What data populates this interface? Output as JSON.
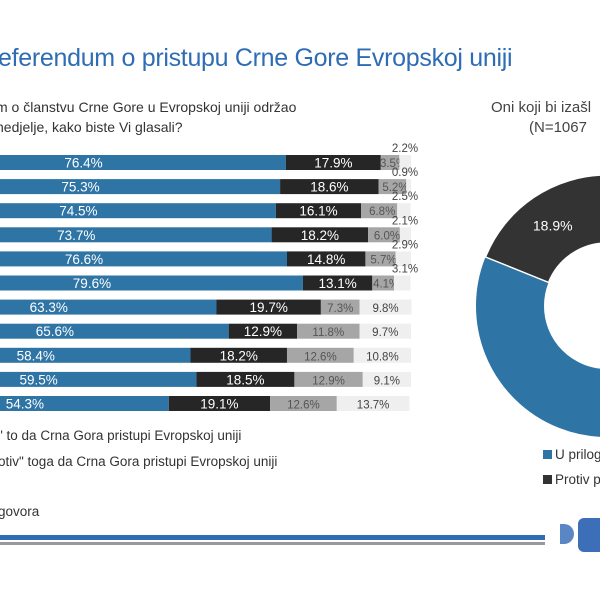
{
  "title": "eferendum o pristupu Crne Gore Evropskoj uniji",
  "question": [
    "m o članstvu Crne Gore u Evropskoj uniji održao",
    "nedjelje, kako biste Vi glasali?"
  ],
  "colors": {
    "for": "#2e74a5",
    "against": "#262626",
    "undecided": "#a6a6a6",
    "no_answer": "#efefef",
    "title": "#2e6db4"
  },
  "legend_left": [
    "\" to da Crna Gora pristupi Evropskoj uniji",
    "otiv\" toga da Crna Gora pristupi Evropskoj uniji",
    "govora"
  ],
  "chart_data": [
    {
      "type": "bar",
      "stacked": true,
      "orientation": "horizontal",
      "series": [
        {
          "values": [
            76.4,
            75.3,
            74.5,
            73.7,
            76.6,
            79.6,
            63.3,
            65.6,
            58.4,
            59.5,
            54.3
          ]
        },
        {
          "values": [
            17.9,
            18.6,
            16.1,
            18.2,
            14.8,
            13.1,
            19.7,
            12.9,
            18.2,
            18.5,
            19.1
          ]
        },
        {
          "values": [
            3.5,
            5.2,
            6.8,
            6.0,
            5.7,
            4.1,
            7.3,
            11.8,
            12.6,
            12.9,
            12.6
          ]
        },
        {
          "values": [
            2.2,
            0.9,
            2.5,
            2.1,
            2.9,
            3.1,
            9.8,
            9.7,
            10.8,
            9.1,
            13.7
          ]
        }
      ],
      "labels": [
        [
          "76.4%",
          "17.9%",
          "3.5%",
          "2.2%"
        ],
        [
          "75.3%",
          "18.6%",
          "5.2%",
          "0.9%"
        ],
        [
          "74.5%",
          "16.1%",
          "6.8%",
          "2.5%"
        ],
        [
          "73.7%",
          "18.2%",
          "6.0%",
          "2.1%"
        ],
        [
          "76.6%",
          "14.8%",
          "5.7%",
          "2.9%"
        ],
        [
          "79.6%",
          "13.1%",
          "4.1%",
          "3.1%"
        ],
        [
          "63.3%",
          "19.7%",
          "7.3%",
          "9.8%"
        ],
        [
          "65.6%",
          "12.9%",
          "11.8%",
          "9.7%"
        ],
        [
          "58.4%",
          "18.2%",
          "12.6%",
          "10.8%"
        ],
        [
          "59.5%",
          "18.5%",
          "12.9%",
          "9.1%"
        ],
        [
          "54.3%",
          "19.1%",
          "12.6%",
          "13.7%"
        ]
      ],
      "xlim": [
        0,
        100
      ]
    },
    {
      "type": "pie",
      "donut": true,
      "title": [
        "Oni koji bi izašl",
        "(N=1067"
      ],
      "slices": [
        {
          "name": "U prilog",
          "value": null,
          "color": "#2e74a5"
        },
        {
          "name": "Protiv p",
          "value": 18.9,
          "label": "18.9%",
          "color": "#333333"
        }
      ]
    }
  ]
}
